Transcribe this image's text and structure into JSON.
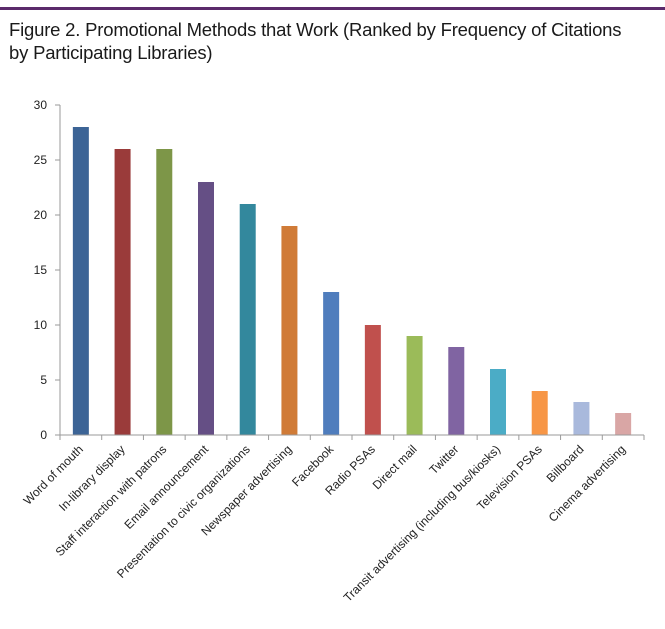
{
  "figure": {
    "title_line1": "Figure 2. Promotional Methods that Work (Ranked by Frequency of Citations",
    "title_line2": "by Participating Libraries)"
  },
  "chart_data": {
    "type": "bar",
    "title": "Figure 2. Promotional Methods that Work (Ranked by Frequency of Citations by Participating Libraries)",
    "xlabel": "",
    "ylabel": "",
    "ylim": [
      0,
      30
    ],
    "yticks": [
      0,
      5,
      10,
      15,
      20,
      25,
      30
    ],
    "grid": false,
    "legend": "none",
    "categories": [
      "Word of mouth",
      "In-library display",
      "Staff interaction with patrons",
      "Email announcement",
      "Presentation to civic organizations",
      "Newspaper advertising",
      "Facebook",
      "Radio PSAs",
      "Direct mail",
      "Twitter",
      "Transit advertising (including bus/kiosks)",
      "Television PSAs",
      "Billboard",
      "Cinema advertising"
    ],
    "values": [
      28,
      26,
      26,
      23,
      21,
      19,
      13,
      10,
      9,
      8,
      6,
      4,
      3,
      2
    ],
    "colors": [
      "#3c6496",
      "#9a3b3a",
      "#7d9648",
      "#654f85",
      "#33889d",
      "#d07b37",
      "#4f7dbd",
      "#c0504d",
      "#9bbb59",
      "#8064a2",
      "#4bacc6",
      "#f79646",
      "#a9b9dc",
      "#d9a6a5"
    ]
  }
}
